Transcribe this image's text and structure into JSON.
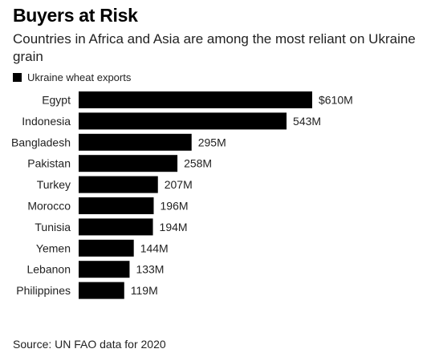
{
  "header": {
    "title": "Buyers at Risk",
    "subtitle": "Countries in Africa and Asia are among the most reliant on Ukraine grain"
  },
  "legend": {
    "label": "Ukraine wheat exports",
    "color": "#000000"
  },
  "footer": {
    "source": "Source: UN FAO data for 2020"
  },
  "chart_data": {
    "type": "bar",
    "orientation": "horizontal",
    "categories": [
      "Egypt",
      "Indonesia",
      "Bangladesh",
      "Pakistan",
      "Turkey",
      "Morocco",
      "Tunisia",
      "Yemen",
      "Lebanon",
      "Philippines"
    ],
    "series": [
      {
        "name": "Ukraine wheat exports",
        "values": [
          610,
          543,
          295,
          258,
          207,
          196,
          194,
          144,
          133,
          119
        ],
        "labels": [
          "$610M",
          "543M",
          "295M",
          "258M",
          "207M",
          "196M",
          "194M",
          "144M",
          "133M",
          "119M"
        ],
        "color": "#000000"
      }
    ],
    "unit": "USD millions",
    "xlim": [
      0,
      610
    ],
    "grid": false,
    "legend_position": "top-left"
  }
}
